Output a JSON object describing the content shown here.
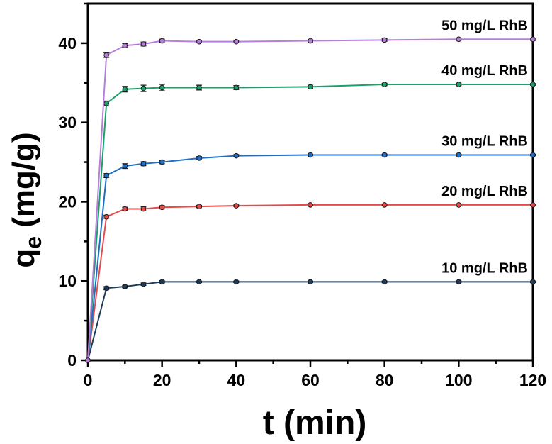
{
  "chart_data": {
    "type": "line",
    "x": [
      0,
      5,
      10,
      15,
      20,
      30,
      40,
      60,
      80,
      100,
      120
    ],
    "series": [
      {
        "name": "10 mg/L RhB",
        "color": "#1f3b5c",
        "values": [
          0,
          9.1,
          9.3,
          9.6,
          9.9,
          9.9,
          9.9,
          9.9,
          9.9,
          9.9,
          9.9
        ],
        "errors": [
          0,
          0.2,
          0.15,
          0.15,
          0.15,
          0.1,
          0.1,
          0.1,
          0.1,
          0.1,
          0.1
        ]
      },
      {
        "name": "20 mg/L RhB",
        "color": "#e64b4b",
        "values": [
          0,
          18.1,
          19.1,
          19.1,
          19.3,
          19.4,
          19.5,
          19.6,
          19.6,
          19.6,
          19.6
        ],
        "errors": [
          0,
          0.2,
          0.2,
          0.25,
          0.2,
          0.15,
          0.1,
          0.1,
          0.1,
          0.1,
          0.1
        ]
      },
      {
        "name": "30 mg/L RhB",
        "color": "#1f6fc6",
        "values": [
          0,
          23.3,
          24.5,
          24.8,
          25.0,
          25.5,
          25.8,
          25.9,
          25.9,
          25.9,
          25.9
        ],
        "errors": [
          0,
          0.25,
          0.3,
          0.25,
          0.2,
          0.2,
          0.15,
          0.1,
          0.1,
          0.1,
          0.1
        ]
      },
      {
        "name": "40 mg/L RhB",
        "color": "#1aa06a",
        "values": [
          0,
          32.4,
          34.2,
          34.3,
          34.4,
          34.4,
          34.4,
          34.5,
          34.8,
          34.8,
          34.8
        ],
        "errors": [
          0,
          0.3,
          0.35,
          0.4,
          0.4,
          0.3,
          0.25,
          0.2,
          0.15,
          0.15,
          0.1
        ]
      },
      {
        "name": "50 mg/L RhB",
        "color": "#b77ed9",
        "values": [
          0,
          38.5,
          39.7,
          39.9,
          40.3,
          40.2,
          40.2,
          40.3,
          40.4,
          40.5,
          40.5
        ],
        "errors": [
          0,
          0.3,
          0.25,
          0.25,
          0.2,
          0.15,
          0.15,
          0.15,
          0.15,
          0.15,
          0.15
        ]
      }
    ],
    "xlabel": "t (min)",
    "ylabel_main": "q",
    "ylabel_sub": "e",
    "ylabel_unit": " (mg/g)",
    "xlim": [
      0,
      120
    ],
    "ylim": [
      0,
      45
    ],
    "xticks": [
      "0",
      "20",
      "40",
      "60",
      "80",
      "100",
      "120"
    ],
    "yticks": [
      "0",
      "10",
      "20",
      "30",
      "40"
    ],
    "grid": false,
    "legend": "inline labels above each curve"
  }
}
